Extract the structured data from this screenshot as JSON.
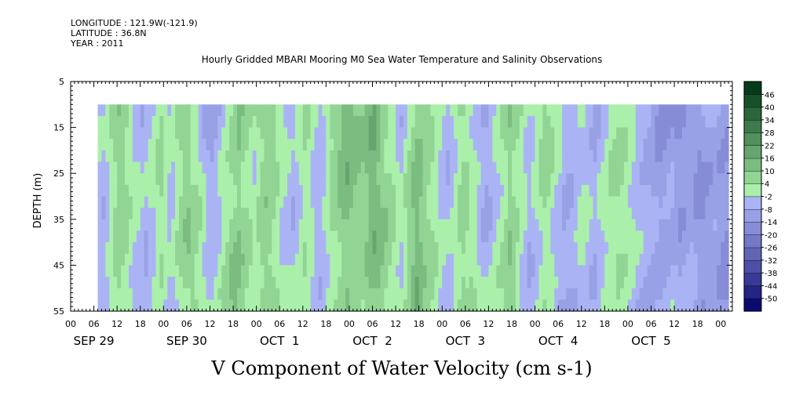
{
  "header": {
    "longitude": "LONGITUDE : 121.9W(-121.9)",
    "latitude": "LATITUDE : 36.8N",
    "year": "YEAR : 2011"
  },
  "chart_data": {
    "type": "heatmap",
    "title": "Hourly Gridded MBARI Mooring M0 Sea Water Temperature and Salinity Observations",
    "caption": "V Component of Water Velocity (cm s-1)",
    "ylabel": "DEPTH (m)",
    "xlabel": "",
    "ylim": [
      5,
      55
    ],
    "y_reversed": true,
    "y_ticks": [
      5,
      15,
      25,
      35,
      45,
      55
    ],
    "x_start": "2011-09-29T00:00",
    "x_hours_total": 171,
    "data_start_hour": 7,
    "data_end_hour": 170,
    "data_depth_range": [
      10,
      55
    ],
    "x_tick_labels": [
      "00",
      "06",
      "12",
      "18",
      "00",
      "06",
      "12",
      "18",
      "00",
      "06",
      "12",
      "18",
      "00",
      "06",
      "12",
      "18",
      "00",
      "06",
      "12",
      "18",
      "00",
      "06",
      "12",
      "18",
      "00",
      "06",
      "12",
      "18",
      "00"
    ],
    "day_labels": [
      "SEP 29",
      "SEP 30",
      "OCT  1",
      "OCT  2",
      "OCT  3",
      "OCT  4",
      "OCT  5"
    ],
    "colorbar": {
      "levels": [
        -50,
        -44,
        -38,
        -32,
        -26,
        -20,
        -14,
        -8,
        -2,
        4,
        10,
        16,
        22,
        28,
        34,
        40,
        46
      ],
      "labels": [
        "46",
        "40",
        "34",
        "28",
        "22",
        "16",
        "10",
        "4",
        "-2",
        "-8",
        "-14",
        "-20",
        "-26",
        "-32",
        "-38",
        "-44",
        "-50"
      ]
    },
    "colors": {
      "strong_negative": "#0d0d6b",
      "mid_negative": "#4a6bdc",
      "weak_negative": "#a8b4f4",
      "weak_positive": "#a8f0a8",
      "mid_positive": "#33d566",
      "strong_positive": "#064420"
    },
    "columns_hourly_mean_v": [
      -4,
      -5,
      -3,
      2,
      5,
      7,
      6,
      4,
      1,
      -2,
      -3,
      -5,
      -6,
      -4,
      -2,
      1,
      3,
      -1,
      -4,
      -3,
      1,
      4,
      6,
      7,
      5,
      3,
      1,
      -3,
      -6,
      -7,
      -5,
      -2,
      1,
      4,
      6,
      8,
      9,
      7,
      5,
      3,
      1,
      4,
      7,
      9,
      8,
      6,
      3,
      1,
      -1,
      -3,
      -4,
      -2,
      1,
      3,
      2,
      -1,
      -4,
      -5,
      -3,
      1,
      4,
      6,
      8,
      10,
      11,
      10,
      8,
      7,
      6,
      9,
      12,
      13,
      11,
      8,
      6,
      4,
      2,
      -1,
      -3,
      1,
      5,
      9,
      12,
      10,
      7,
      5,
      3,
      1,
      -2,
      -4,
      -5,
      -3,
      1,
      4,
      6,
      5,
      3,
      1,
      -2,
      -5,
      -6,
      -4,
      -2,
      1,
      3,
      6,
      9,
      7,
      4,
      1,
      -2,
      -4,
      -3,
      -1,
      2,
      4,
      3,
      1,
      -2,
      -5,
      -7,
      -8,
      -7,
      -5,
      -3,
      -2,
      -4,
      -6,
      -7,
      -5,
      -3,
      -1,
      1,
      2,
      3,
      2,
      1,
      -1,
      -3,
      -5,
      -6,
      -7,
      -8,
      -9,
      -10,
      -11,
      -10,
      -9,
      -8,
      -10,
      -12,
      -11,
      -10,
      -9,
      -11,
      -13,
      -12,
      -11,
      -10,
      -9,
      -11,
      -12,
      -13,
      -11,
      -10,
      -9,
      -8
    ]
  }
}
